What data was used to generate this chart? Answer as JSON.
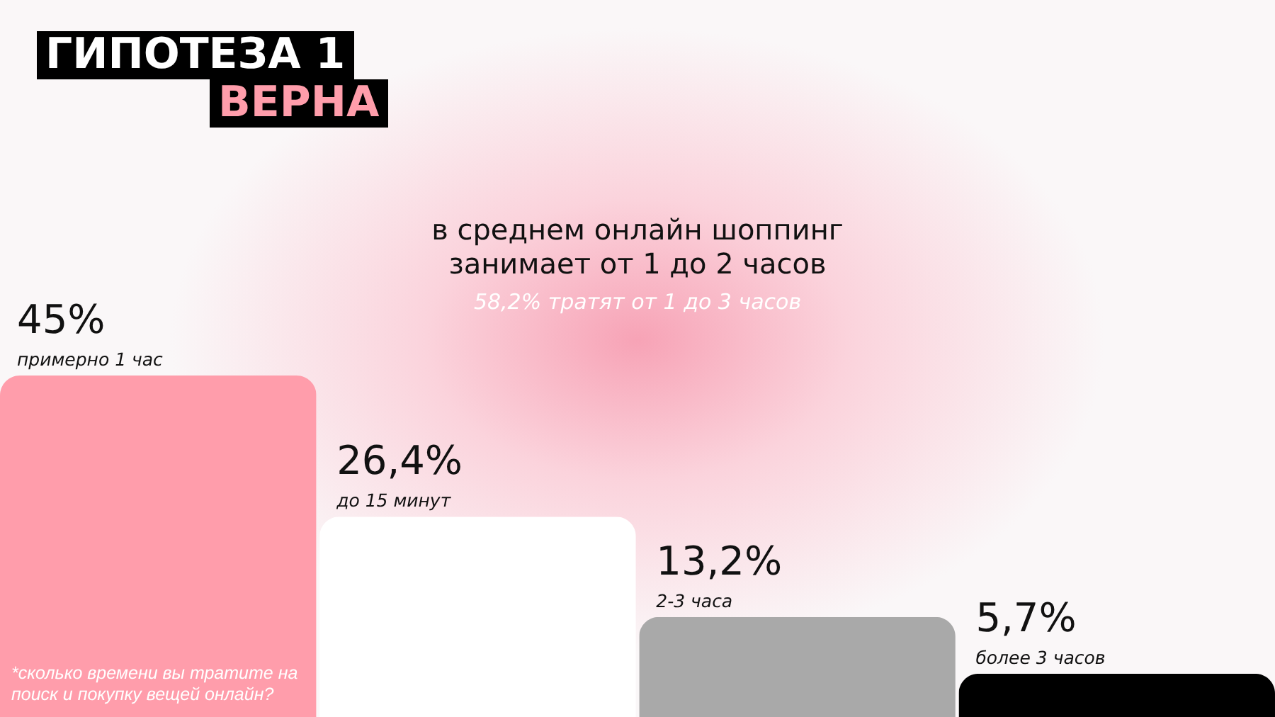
{
  "chart_data": {
    "type": "bar",
    "title": "ГИПОТЕЗА 1 ВЕРНА",
    "subtitle": "в среднем онлайн шоппинг занимает от 1 до 2 часов",
    "annotations": [
      "58,2% тратят от 1 до 3 часов",
      "*сколько времени вы тратите на поиск и покупку вещей онлайн?"
    ],
    "categories": [
      "примерно 1 час",
      "до 15 минут",
      "2-3 часа",
      "более 3 часов"
    ],
    "values": [
      45,
      26.4,
      13.2,
      5.7
    ],
    "colors": [
      "#ff9dab",
      "#ffffff",
      "#a9a9a9",
      "#000000"
    ],
    "value_labels": [
      "45%",
      "26,4%",
      "13,2%",
      "5,7%"
    ],
    "grid": false
  }
}
